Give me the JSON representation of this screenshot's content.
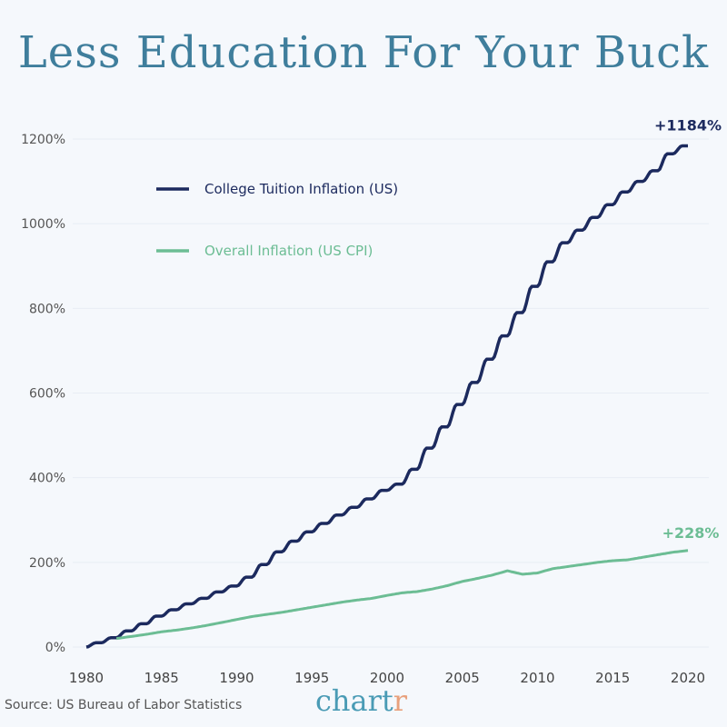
{
  "chart_data": {
    "type": "line",
    "title": "Less Education For Your Buck",
    "xlabel": "",
    "ylabel": "",
    "xlim": [
      1980,
      2020.5
    ],
    "ylim": [
      0,
      1200
    ],
    "grid": true,
    "legend_placement": "top-left",
    "x_ticks": [
      "1980",
      "1985",
      "1990",
      "1995",
      "2000",
      "2005",
      "2010",
      "2015",
      "2020"
    ],
    "y_ticks": [
      "0%",
      "200%",
      "400%",
      "600%",
      "800%",
      "1000%",
      "1200%"
    ],
    "x": [
      1980,
      1981,
      1982,
      1983,
      1984,
      1985,
      1986,
      1987,
      1988,
      1989,
      1990,
      1991,
      1992,
      1993,
      1994,
      1995,
      1996,
      1997,
      1998,
      1999,
      2000,
      2001,
      2002,
      2003,
      2004,
      2005,
      2006,
      2007,
      2008,
      2009,
      2010,
      2011,
      2012,
      2013,
      2014,
      2015,
      2016,
      2017,
      2018,
      2019,
      2020
    ],
    "series": [
      {
        "name": "College Tuition Inflation (US)",
        "color": "#1c2a5e",
        "end_label": "+1184%",
        "values": [
          0,
          10,
          22,
          38,
          55,
          73,
          88,
          102,
          115,
          130,
          144,
          165,
          195,
          225,
          250,
          272,
          292,
          312,
          330,
          350,
          370,
          385,
          420,
          470,
          520,
          573,
          625,
          680,
          735,
          790,
          852,
          910,
          955,
          985,
          1015,
          1045,
          1075,
          1100,
          1125,
          1165,
          1184
        ]
      },
      {
        "name": "Overall Inflation (US CPI)",
        "color": "#6cbd94",
        "end_label": "+228%",
        "values": [
          null,
          null,
          20,
          25,
          30,
          36,
          40,
          45,
          51,
          58,
          65,
          72,
          77,
          82,
          88,
          94,
          100,
          106,
          111,
          115,
          122,
          128,
          131,
          137,
          145,
          155,
          162,
          170,
          180,
          172,
          175,
          185,
          190,
          195,
          200,
          204,
          206,
          212,
          218,
          224,
          228
        ]
      }
    ],
    "source": "Source: US Bureau of Labor Statistics"
  },
  "brand": {
    "logo_main": "chart",
    "logo_accent": "r"
  }
}
